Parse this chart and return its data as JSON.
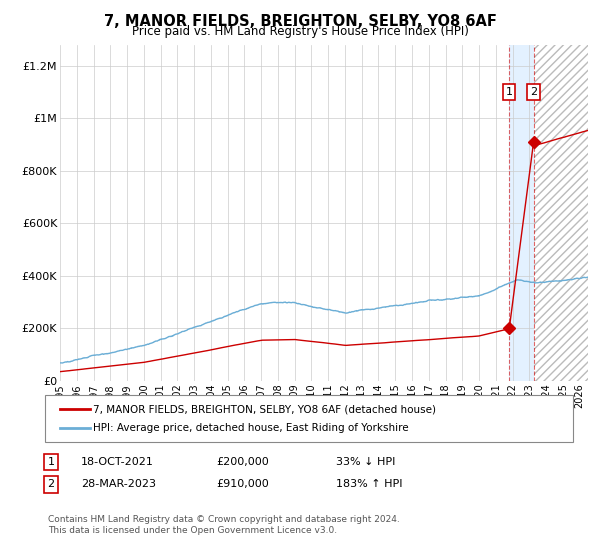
{
  "title": "7, MANOR FIELDS, BREIGHTON, SELBY, YO8 6AF",
  "subtitle": "Price paid vs. HM Land Registry's House Price Index (HPI)",
  "xlim_start": 1995.0,
  "xlim_end": 2026.5,
  "ylim_min": 0,
  "ylim_max": 1280000,
  "yticks": [
    0,
    200000,
    400000,
    600000,
    800000,
    1000000,
    1200000
  ],
  "ytick_labels": [
    "£0",
    "£200K",
    "£400K",
    "£600K",
    "£800K",
    "£1M",
    "£1.2M"
  ],
  "xticks": [
    1995,
    1996,
    1997,
    1998,
    1999,
    2000,
    2001,
    2002,
    2003,
    2004,
    2005,
    2006,
    2007,
    2008,
    2009,
    2010,
    2011,
    2012,
    2013,
    2014,
    2015,
    2016,
    2017,
    2018,
    2019,
    2020,
    2021,
    2022,
    2023,
    2024,
    2025,
    2026
  ],
  "hpi_color": "#6baed6",
  "price_color": "#cc0000",
  "marker_color": "#cc0000",
  "grid_color": "#cccccc",
  "bg_color": "#ffffff",
  "sale1_x": 2021.8,
  "sale1_y": 200000,
  "sale2_x": 2023.25,
  "sale2_y": 910000,
  "sale1_label": "1",
  "sale2_label": "2",
  "sale1_date": "18-OCT-2021",
  "sale1_price": "£200,000",
  "sale1_hpi": "33% ↓ HPI",
  "sale2_date": "28-MAR-2023",
  "sale2_price": "£910,000",
  "sale2_hpi": "183% ↑ HPI",
  "legend_label1": "7, MANOR FIELDS, BREIGHTON, SELBY, YO8 6AF (detached house)",
  "legend_label2": "HPI: Average price, detached house, East Riding of Yorkshire",
  "footnote": "Contains HM Land Registry data © Crown copyright and database right 2024.\nThis data is licensed under the Open Government Licence v3.0.",
  "shaded_region_start": 2021.8,
  "shaded_region_end": 2023.25,
  "hatch_region_start": 2023.25,
  "hatch_region_end": 2026.5
}
